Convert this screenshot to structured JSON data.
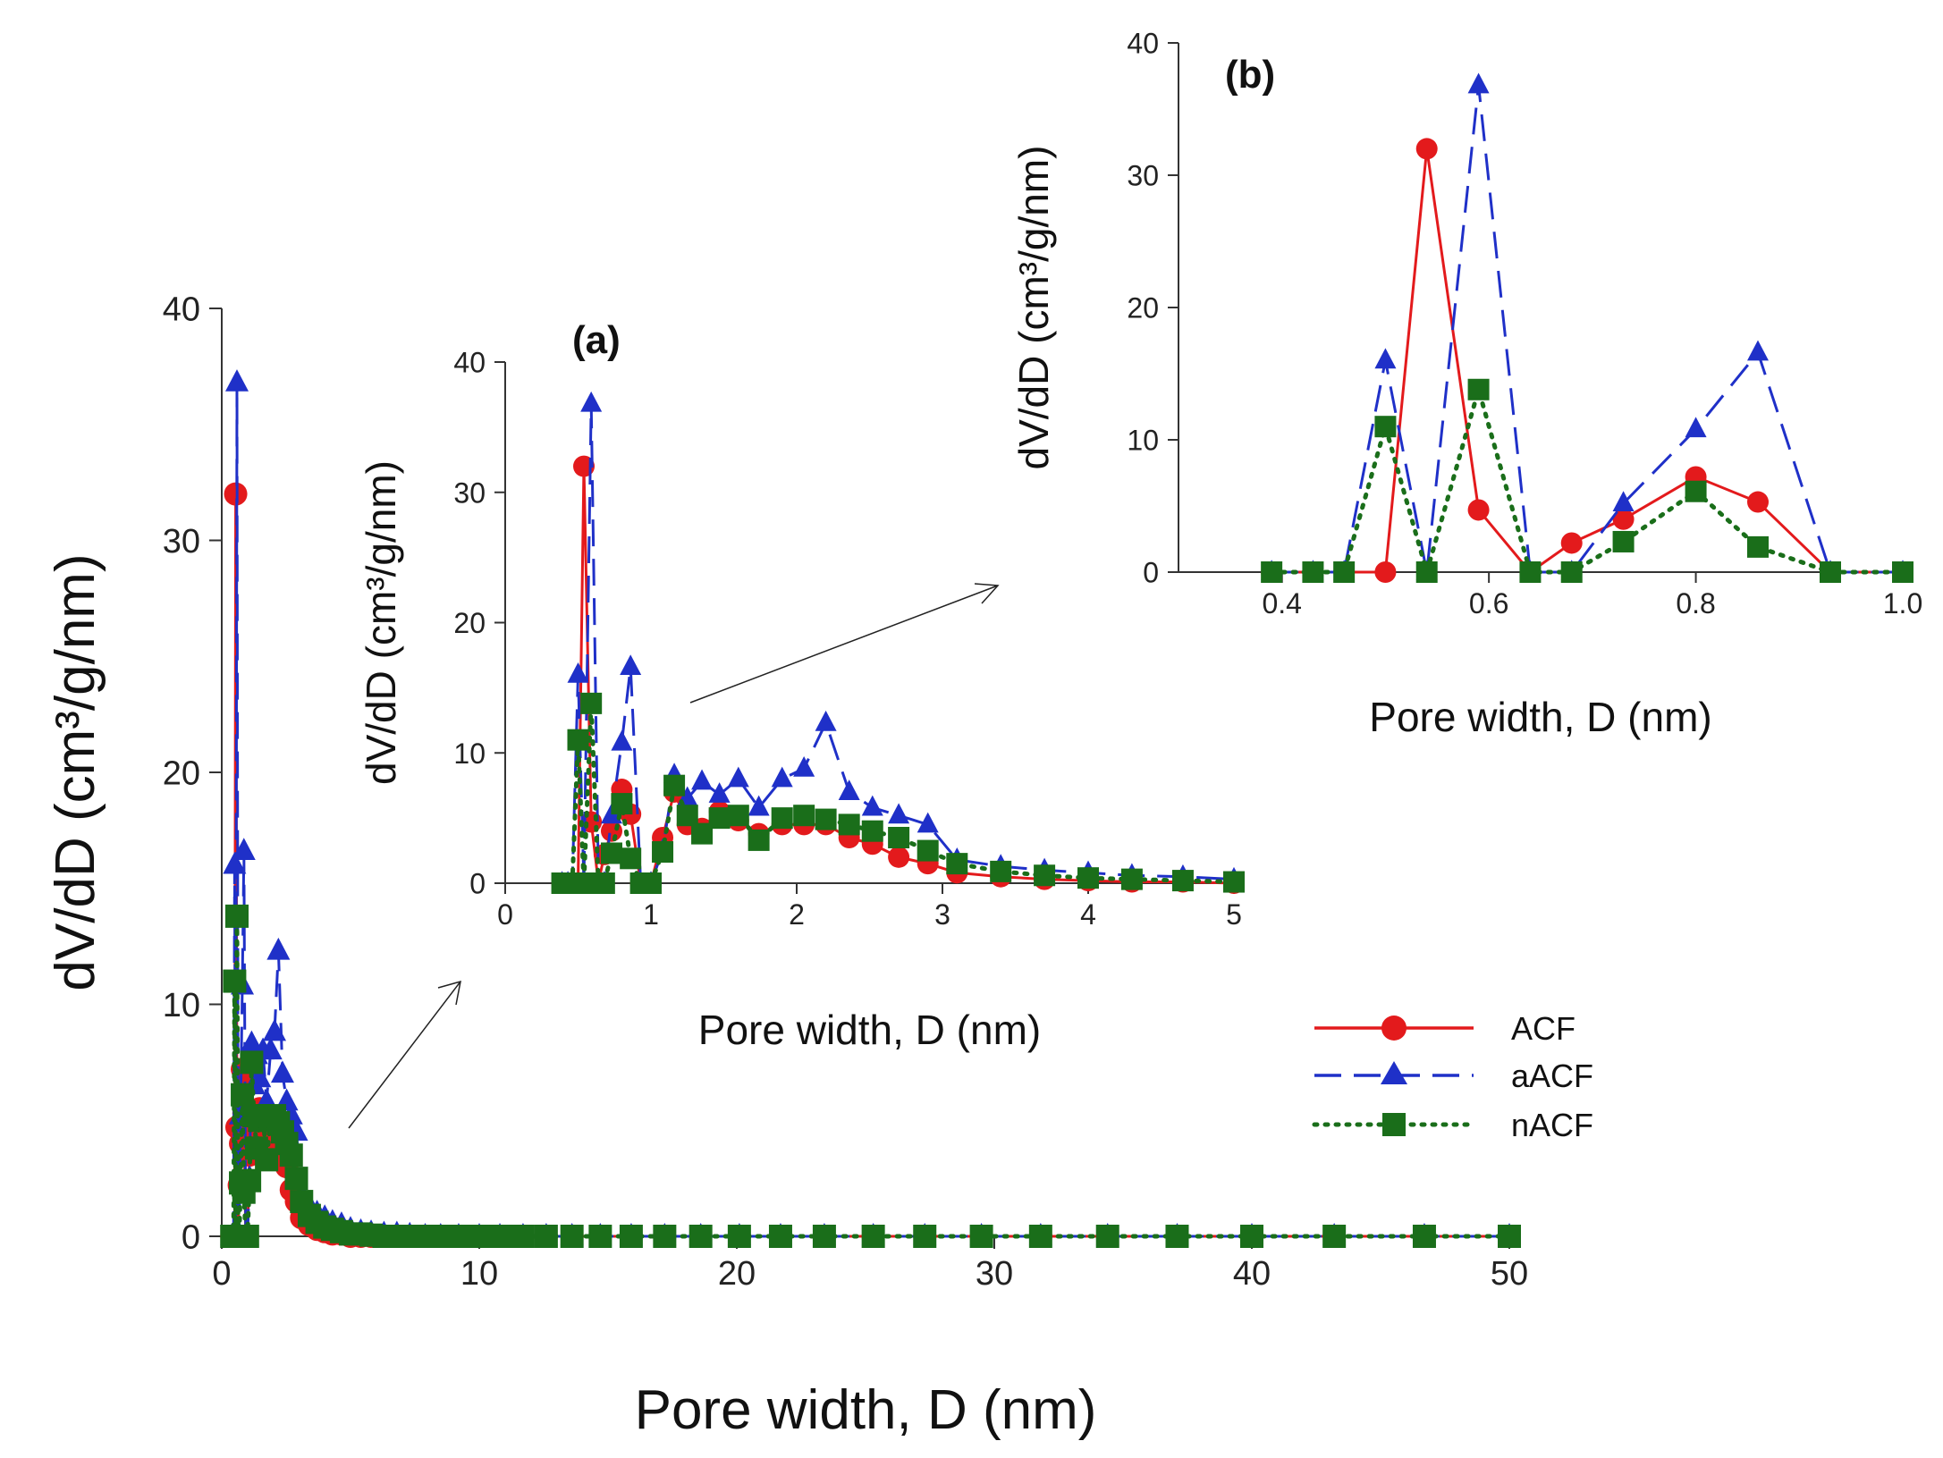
{
  "chart_data": [
    {
      "id": "main",
      "type": "line",
      "title": "",
      "xlabel": "Pore width, D (nm)",
      "ylabel": "dV/dD (cm³/g/nm)",
      "xlim": [
        0,
        50
      ],
      "ylim": [
        0,
        40
      ],
      "xticks": [
        "0",
        "10",
        "20",
        "30",
        "40",
        "50"
      ],
      "yticks": [
        "0",
        "10",
        "20",
        "30",
        "40"
      ],
      "series": [
        {
          "name": "ACF",
          "color": "#e31a1c",
          "dash": "solid",
          "marker": "circle",
          "x": [
            0.39,
            0.43,
            0.46,
            0.5,
            0.54,
            0.59,
            0.64,
            0.68,
            0.73,
            0.8,
            0.86,
            0.93,
            1.0,
            1.08,
            1.16,
            1.25,
            1.35,
            1.47,
            1.6,
            1.74,
            1.9,
            2.05,
            2.2,
            2.36,
            2.52,
            2.7,
            2.9,
            3.1,
            3.4,
            3.7,
            4.0,
            4.3,
            4.65,
            5.0,
            5.4,
            5.8,
            6.3,
            6.8,
            7.3,
            7.9,
            8.5,
            9.2,
            10,
            10.8,
            11.7,
            12.6,
            13.6,
            14.7,
            15.9,
            17.2,
            18.6,
            20.1,
            21.7,
            23.4,
            25.3,
            27.3,
            29.5,
            31.8,
            34.4,
            37.1,
            40.0,
            43.2,
            46.7,
            50.0
          ],
          "y": [
            0,
            0,
            0,
            0,
            32,
            4.7,
            0,
            2.2,
            4,
            7.2,
            5.3,
            0,
            0,
            3.5,
            7,
            4.5,
            4.2,
            5.5,
            4.8,
            3.8,
            4.5,
            4.5,
            4.5,
            3.5,
            3,
            2,
            1.5,
            0.8,
            0.5,
            0.3,
            0.2,
            0.1,
            0.1,
            0,
            0,
            0,
            0,
            0,
            0,
            0,
            0,
            0,
            0,
            0,
            0,
            0,
            0,
            0,
            0,
            0,
            0,
            0,
            0,
            0,
            0,
            0,
            0,
            0,
            0,
            0,
            0,
            0,
            0,
            0
          ]
        },
        {
          "name": "aACF",
          "color": "#1f30c8",
          "dash": "long-dash",
          "marker": "triangle",
          "x": [
            0.39,
            0.43,
            0.46,
            0.5,
            0.54,
            0.59,
            0.64,
            0.68,
            0.73,
            0.8,
            0.86,
            0.93,
            1.0,
            1.08,
            1.16,
            1.25,
            1.35,
            1.47,
            1.6,
            1.74,
            1.9,
            2.05,
            2.2,
            2.36,
            2.52,
            2.7,
            2.9,
            3.1,
            3.4,
            3.7,
            4.0,
            4.3,
            4.65,
            5.0,
            5.4,
            5.8,
            6.3,
            6.8,
            7.3,
            7.9,
            8.5,
            9.2,
            10,
            10.8,
            11.7,
            12.6,
            13.6,
            14.7,
            15.9,
            17.2,
            18.6,
            20.1,
            21.7,
            23.4,
            25.3,
            27.3,
            29.5,
            31.8,
            34.4,
            37.1,
            40.0,
            43.2,
            46.7,
            50.0
          ],
          "y": [
            0,
            0,
            0,
            16,
            0,
            36.8,
            0,
            0,
            5.2,
            10.8,
            16.6,
            0,
            0,
            2.5,
            8.3,
            6.5,
            7.8,
            6.8,
            8,
            5.8,
            8,
            8.8,
            12.3,
            7,
            5.8,
            5.2,
            4.5,
            1.8,
            1.3,
            1.0,
            0.8,
            0.6,
            0.5,
            0.3,
            0.2,
            0.15,
            0.1,
            0.1,
            0.05,
            0,
            0,
            0,
            0,
            0,
            0,
            0,
            0,
            0,
            0,
            0,
            0,
            0,
            0,
            0,
            0,
            0,
            0,
            0,
            0,
            0,
            0,
            0,
            0,
            0
          ]
        },
        {
          "name": "nACF",
          "color": "#1a6e1a",
          "dash": "dotted",
          "marker": "square",
          "x": [
            0.39,
            0.43,
            0.46,
            0.5,
            0.54,
            0.59,
            0.64,
            0.68,
            0.73,
            0.8,
            0.86,
            0.93,
            1.0,
            1.08,
            1.16,
            1.25,
            1.35,
            1.47,
            1.6,
            1.74,
            1.9,
            2.05,
            2.2,
            2.36,
            2.52,
            2.7,
            2.9,
            3.1,
            3.4,
            3.7,
            4.0,
            4.3,
            4.65,
            5.0,
            5.4,
            5.8,
            6.3,
            6.8,
            7.3,
            7.9,
            8.5,
            9.2,
            10,
            10.8,
            11.7,
            12.6,
            13.6,
            14.7,
            15.9,
            17.2,
            18.6,
            20.1,
            21.7,
            23.4,
            25.3,
            27.3,
            29.5,
            31.8,
            34.4,
            37.1,
            40.0,
            43.2,
            46.7,
            50.0
          ],
          "y": [
            0,
            0,
            0,
            11,
            0,
            13.8,
            0,
            0,
            2.3,
            6.1,
            1.9,
            0,
            0,
            2.4,
            7.5,
            5.2,
            3.8,
            5,
            5.2,
            3.3,
            5,
            5.2,
            4.9,
            4.5,
            4,
            3.5,
            2.5,
            1.5,
            0.9,
            0.6,
            0.4,
            0.3,
            0.2,
            0.1,
            0.1,
            0.05,
            0,
            0,
            0,
            0,
            0,
            0,
            0,
            0,
            0,
            0,
            0,
            0,
            0,
            0,
            0,
            0,
            0,
            0,
            0,
            0,
            0,
            0,
            0,
            0,
            0,
            0,
            0,
            0
          ]
        }
      ]
    },
    {
      "id": "inset-a",
      "type": "line",
      "title": "(a)",
      "xlabel": "Pore width, D (nm)",
      "ylabel": "dV/dD (cm³/g/nm)",
      "xlim": [
        0,
        5
      ],
      "ylim": [
        0,
        40
      ],
      "xticks": [
        "0",
        "1",
        "2",
        "3",
        "4",
        "5"
      ],
      "yticks": [
        "0",
        "10",
        "20",
        "30",
        "40"
      ]
    },
    {
      "id": "inset-b",
      "type": "line",
      "title": "(b)",
      "xlabel": "Pore width, D (nm)",
      "ylabel": "dV/dD (cm³/g/nm)",
      "xlim": [
        0.3,
        1.0
      ],
      "ylim": [
        0,
        40
      ],
      "xticks": [
        "0.4",
        "0.6",
        "0.8",
        "1.0"
      ],
      "yticks": [
        "0",
        "10",
        "20",
        "30",
        "40"
      ]
    }
  ],
  "legend": {
    "position": "right-middle",
    "entries": [
      "ACF",
      "aACF",
      "nACF"
    ]
  }
}
